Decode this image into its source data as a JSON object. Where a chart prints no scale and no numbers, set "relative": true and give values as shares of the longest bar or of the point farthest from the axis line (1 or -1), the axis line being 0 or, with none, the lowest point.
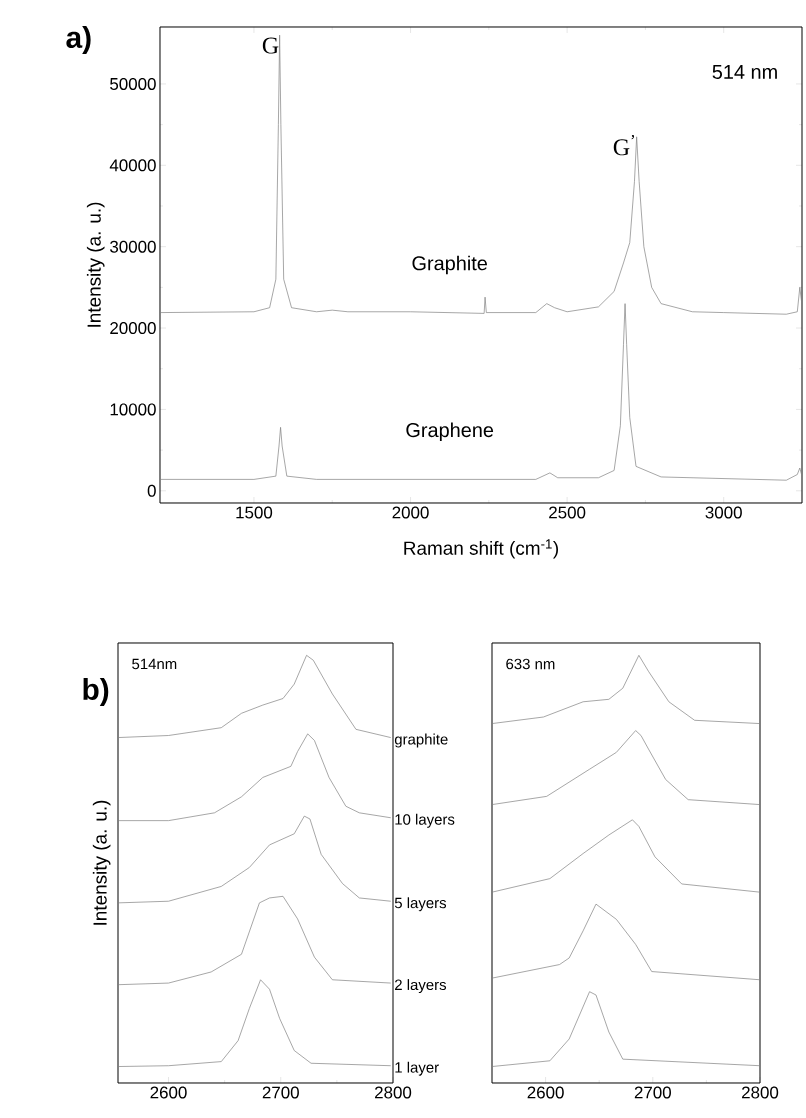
{
  "chart_data": [
    {
      "type": "line",
      "xlabel": "Raman shift (cm$^{-1}$)",
      "ylabel": "Intensity (a. u.)",
      "annotations": [
        "a)",
        "514 nm",
        {
          "text": "G",
          "x": 1582,
          "y": 56000
        },
        {
          "text": "G$^{’}$",
          "x": 2722,
          "y": 43500
        }
      ],
      "xlim": [
        1200,
        3250
      ],
      "ylim": [
        -1500,
        57000
      ],
      "xticks": [
        1500,
        2000,
        2500,
        3000
      ],
      "yticks": [
        0,
        10000,
        20000,
        30000,
        40000,
        50000
      ],
      "grid": false,
      "legend": false,
      "marker": "none",
      "line_style": "solid",
      "series": [
        {
          "name": "Graphite",
          "color": "#808080",
          "x": [
            1200,
            1500,
            1550,
            1570,
            1578,
            1582,
            1586,
            1595,
            1620,
            1700,
            1750,
            1800,
            2000,
            2235,
            2238,
            2242,
            2400,
            2435,
            2460,
            2500,
            2600,
            2650,
            2680,
            2700,
            2715,
            2722,
            2730,
            2745,
            2770,
            2800,
            2900,
            3000,
            3200,
            3235,
            3243,
            3250
          ],
          "values": [
            21900,
            22000,
            22500,
            26000,
            45000,
            56000,
            45000,
            26000,
            22500,
            22000,
            22200,
            22000,
            22000,
            21800,
            23800,
            21900,
            21900,
            23000,
            22500,
            22000,
            22600,
            24500,
            28000,
            30500,
            38000,
            43500,
            38000,
            30000,
            25000,
            23000,
            22000,
            21900,
            21700,
            22000,
            25000,
            22800
          ]
        },
        {
          "name": "Graphene",
          "color": "#808080",
          "x": [
            1200,
            1500,
            1570,
            1580,
            1585,
            1590,
            1605,
            1700,
            2400,
            2445,
            2470,
            2600,
            2650,
            2670,
            2680,
            2685,
            2690,
            2700,
            2720,
            2800,
            3200,
            3235,
            3243,
            3250
          ],
          "values": [
            1400,
            1400,
            1800,
            5500,
            7800,
            5500,
            1800,
            1400,
            1400,
            2200,
            1600,
            1600,
            2500,
            8000,
            18000,
            23000,
            18000,
            9000,
            3000,
            1700,
            1300,
            2000,
            2800,
            1800
          ]
        }
      ]
    },
    {
      "type": "line",
      "relative": true,
      "ylabel": "Intensity (a. u.)",
      "annotations": [
        "b)",
        "514nm"
      ],
      "xlim": [
        2555,
        2800
      ],
      "xticks": [
        2600,
        2700,
        2800
      ],
      "grid": false,
      "legend": false,
      "marker": "none",
      "line_style": "solid",
      "series": [
        {
          "name": "graphite",
          "color": "#808080",
          "x": [
            2555,
            2600,
            2647,
            2665,
            2684,
            2702,
            2712,
            2723,
            2729,
            2746,
            2767,
            2798
          ],
          "values": [
            0.8,
            0.805,
            0.824,
            0.859,
            0.879,
            0.895,
            0.93,
            1.0,
            0.988,
            0.906,
            0.82,
            0.8
          ]
        },
        {
          "name": "10 layers",
          "color": "#808080",
          "x": [
            2555,
            2600,
            2641,
            2665,
            2684,
            2709,
            2715,
            2724,
            2730,
            2743,
            2758,
            2770,
            2798
          ],
          "values": [
            0.598,
            0.598,
            0.617,
            0.656,
            0.703,
            0.73,
            0.766,
            0.809,
            0.793,
            0.703,
            0.633,
            0.617,
            0.605
          ]
        },
        {
          "name": "5 layers",
          "color": "#808080",
          "x": [
            2555,
            2600,
            2647,
            2672,
            2690,
            2712,
            2721,
            2726,
            2736,
            2755,
            2770,
            2798
          ],
          "values": [
            0.398,
            0.402,
            0.438,
            0.484,
            0.539,
            0.566,
            0.609,
            0.602,
            0.516,
            0.445,
            0.41,
            0.402
          ]
        },
        {
          "name": "2 layers",
          "color": "#808080",
          "x": [
            2555,
            2600,
            2638,
            2665,
            2681,
            2690,
            2702,
            2715,
            2730,
            2746,
            2798
          ],
          "values": [
            0.199,
            0.203,
            0.23,
            0.273,
            0.398,
            0.41,
            0.414,
            0.359,
            0.266,
            0.211,
            0.203
          ]
        },
        {
          "name": "1 layer",
          "color": "#808080",
          "x": [
            2555,
            2600,
            2647,
            2662,
            2672,
            2682,
            2690,
            2699,
            2712,
            2727,
            2798
          ],
          "values": [
            0,
            0.002,
            0.012,
            0.063,
            0.141,
            0.211,
            0.188,
            0.117,
            0.039,
            0.008,
            0.002
          ]
        }
      ]
    },
    {
      "type": "line",
      "relative": true,
      "annotations": [
        "633 nm"
      ],
      "xlim": [
        2550,
        2800
      ],
      "xticks": [
        2600,
        2700,
        2800
      ],
      "grid": false,
      "legend": false,
      "marker": "none",
      "line_style": "solid",
      "series": [
        {
          "color": "#808080",
          "x": [
            2550,
            2598,
            2635,
            2659,
            2672,
            2687,
            2696,
            2715,
            2739,
            2800
          ],
          "values": [
            0.834,
            0.85,
            0.887,
            0.893,
            0.92,
            1.0,
            0.961,
            0.887,
            0.842,
            0.834
          ]
        },
        {
          "color": "#808080",
          "x": [
            2550,
            2601,
            2641,
            2666,
            2684,
            2689,
            2696,
            2712,
            2733,
            2800
          ],
          "values": [
            0.637,
            0.657,
            0.723,
            0.764,
            0.817,
            0.805,
            0.772,
            0.698,
            0.649,
            0.637
          ]
        },
        {
          "color": "#808080",
          "x": [
            2550,
            2604,
            2635,
            2659,
            2681,
            2687,
            2702,
            2727,
            2800
          ],
          "values": [
            0.424,
            0.457,
            0.518,
            0.563,
            0.6,
            0.584,
            0.51,
            0.444,
            0.424
          ]
        },
        {
          "color": "#808080",
          "x": [
            2550,
            2613,
            2622,
            2635,
            2647,
            2666,
            2684,
            2699,
            2800
          ],
          "values": [
            0.215,
            0.248,
            0.264,
            0.33,
            0.395,
            0.358,
            0.297,
            0.231,
            0.211
          ]
        },
        {
          "color": "#808080",
          "x": [
            2550,
            2604,
            2622,
            2641,
            2647,
            2659,
            2672,
            2800
          ],
          "values": [
            0,
            0.014,
            0.067,
            0.182,
            0.174,
            0.084,
            0.018,
            0.002
          ]
        }
      ]
    }
  ]
}
